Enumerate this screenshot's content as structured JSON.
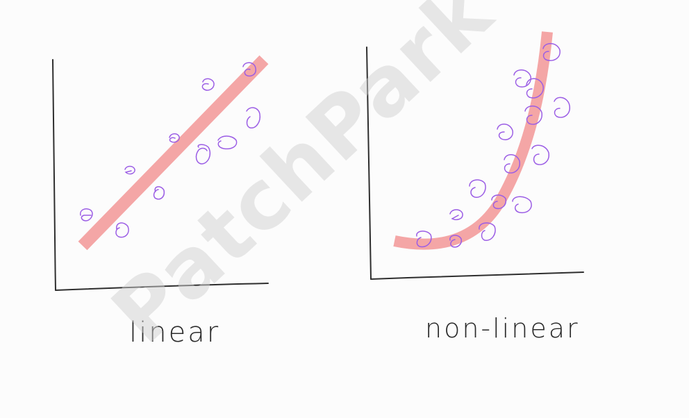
{
  "watermark": {
    "text": "PatchPark",
    "color": "#d0d0d0"
  },
  "colors": {
    "axis": "#2e2e2e",
    "fit": "#f4a6a6",
    "points": "#9b5de5",
    "label": "#2b2b2b"
  },
  "panels": [
    {
      "label": "linear"
    },
    {
      "label": "non-linear"
    }
  ]
}
